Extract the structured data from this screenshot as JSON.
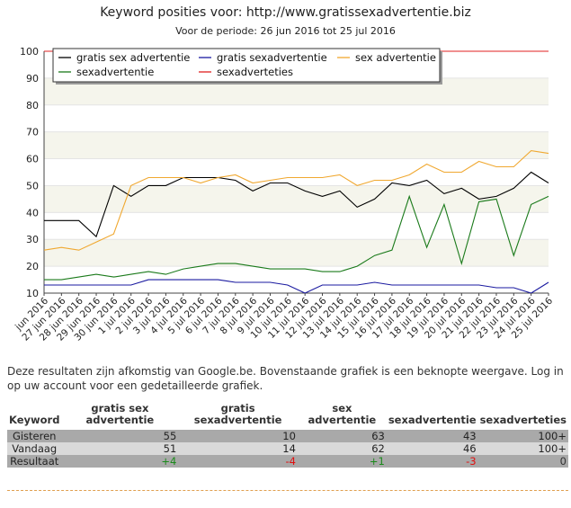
{
  "page": {
    "title": "Keyword posities voor: http://www.gratissexadvertentie.biz",
    "subtitle": "Voor de periode: 26 jun 2016 tot 25 jul 2016",
    "note": "Deze resultaten zijn afkomstig van Google.be. Bovenstaande grafiek is een beknopte weergave. Log in op uw account voor een gedetailleerde grafiek."
  },
  "chart_data": {
    "type": "line",
    "categories": [
      "jun 2016",
      "27 jun 2016",
      "28 jun 2016",
      "29 jun 2016",
      "30 jun 2016",
      "1 jul 2016",
      "2 jul 2016",
      "3 jul 2016",
      "4 jul 2016",
      "5 jul 2016",
      "6 jul 2016",
      "7 jul 2016",
      "8 jul 2016",
      "9 jul 2016",
      "10 jul 2016",
      "11 jul 2016",
      "12 jul 2016",
      "13 jul 2016",
      "14 jul 2016",
      "15 jul 2016",
      "16 jul 2016",
      "17 jul 2016",
      "18 jul 2016",
      "19 jul 2016",
      "20 jul 2016",
      "21 jul 2016",
      "22 jul 2016",
      "23 jul 2016",
      "24 jul 2016",
      "25 jul 2016"
    ],
    "y_ticks": [
      "10",
      "20",
      "30",
      "40",
      "50",
      "60",
      "70",
      "80",
      "90",
      "100"
    ],
    "ylim": [
      10,
      100
    ],
    "grid": true,
    "legend_position": "top-left",
    "series": [
      {
        "name": "gratis sex advertentie",
        "color": "#000000",
        "values": [
          37,
          37,
          37,
          31,
          50,
          46,
          50,
          50,
          53,
          53,
          53,
          52,
          48,
          51,
          51,
          48,
          46,
          48,
          42,
          45,
          51,
          50,
          52,
          47,
          49,
          45,
          46,
          49,
          55,
          51
        ]
      },
      {
        "name": "gratis sexadvertentie",
        "color": "#1a1aa0",
        "values": [
          13,
          13,
          13,
          13,
          13,
          13,
          15,
          15,
          15,
          15,
          15,
          14,
          14,
          14,
          13,
          10,
          13,
          13,
          13,
          14,
          13,
          13,
          13,
          13,
          13,
          13,
          12,
          12,
          10,
          14
        ]
      },
      {
        "name": "sex advertentie",
        "color": "#f0a830",
        "values": [
          26,
          27,
          26,
          29,
          32,
          50,
          53,
          53,
          53,
          51,
          53,
          54,
          51,
          52,
          53,
          53,
          53,
          54,
          50,
          52,
          52,
          54,
          58,
          55,
          55,
          59,
          57,
          57,
          63,
          62
        ]
      },
      {
        "name": "sexadvertentie",
        "color": "#1a7a1a",
        "values": [
          15,
          15,
          16,
          17,
          16,
          17,
          18,
          17,
          19,
          20,
          21,
          21,
          20,
          19,
          19,
          19,
          18,
          18,
          20,
          24,
          26,
          46,
          27,
          43,
          21,
          44,
          45,
          24,
          43,
          46
        ]
      },
      {
        "name": "sexadverteties",
        "color": "#e02020",
        "values": [
          100,
          100,
          100,
          100,
          100,
          100,
          100,
          100,
          100,
          100,
          100,
          100,
          100,
          100,
          100,
          100,
          100,
          100,
          100,
          100,
          100,
          100,
          100,
          100,
          100,
          100,
          100,
          100,
          100,
          100
        ]
      }
    ]
  },
  "table": {
    "headers": [
      "Keyword",
      "gratis sex advertentie",
      "gratis sexadvertentie",
      "sex advertentie",
      "sexadvertentie",
      "sexadverteties"
    ],
    "rows": [
      {
        "label": "Gisteren",
        "cells": [
          "55",
          "10",
          "63",
          "43",
          "100+"
        ]
      },
      {
        "label": "Vandaag",
        "cells": [
          "51",
          "14",
          "62",
          "46",
          "100+"
        ]
      },
      {
        "label": "Resultaat",
        "cells": [
          "+4",
          "-4",
          "+1",
          "-3",
          "0"
        ]
      }
    ]
  }
}
